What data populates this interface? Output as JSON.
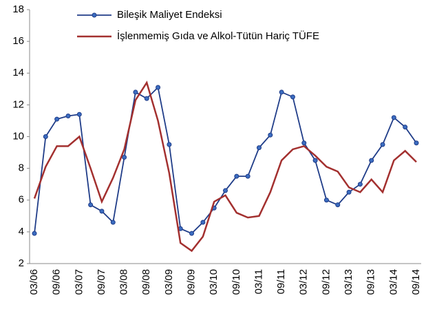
{
  "chart_data": {
    "type": "line",
    "categories": [
      "03/06",
      null,
      "09/06",
      null,
      "03/07",
      null,
      "09/07",
      null,
      "03/08",
      null,
      "09/08",
      null,
      "03/09",
      null,
      "09/09",
      null,
      "03/10",
      null,
      "09/10",
      null,
      "03/11",
      null,
      "09/11",
      null,
      "03/12",
      null,
      "09/12",
      null,
      "03/13",
      null,
      "09/13",
      null,
      "03/14",
      null,
      "09/14"
    ],
    "series": [
      {
        "name": "Bileşik Maliyet Endeksi",
        "color": "#1f3c88",
        "marker": true,
        "values": [
          3.9,
          10.0,
          11.1,
          11.3,
          11.4,
          5.7,
          5.3,
          4.6,
          8.7,
          12.8,
          12.4,
          13.1,
          9.5,
          4.2,
          3.9,
          4.6,
          5.5,
          6.6,
          7.5,
          7.5,
          9.3,
          10.1,
          12.8,
          12.5,
          9.6,
          8.5,
          6.0,
          5.7,
          6.5,
          7.0,
          8.5,
          9.5,
          11.2,
          10.6,
          9.6
        ]
      },
      {
        "name": "İşlenmemiş Gıda ve Alkol-Tütün Hariç TÜFE",
        "color": "#a3302f",
        "marker": false,
        "values": [
          6.1,
          8.1,
          9.4,
          9.4,
          10.0,
          8.0,
          5.9,
          7.4,
          9.2,
          12.3,
          13.4,
          11.0,
          7.7,
          3.3,
          2.8,
          3.7,
          5.9,
          6.3,
          5.2,
          4.9,
          5.0,
          6.5,
          8.5,
          9.2,
          9.4,
          8.8,
          8.1,
          7.8,
          6.8,
          6.5,
          7.3,
          6.5,
          8.5,
          9.1,
          8.4
        ]
      }
    ],
    "ylim": [
      2,
      18
    ],
    "yticks": [
      2,
      4,
      6,
      8,
      10,
      12,
      14,
      16,
      18
    ],
    "grid": false,
    "legend": "top-left"
  }
}
